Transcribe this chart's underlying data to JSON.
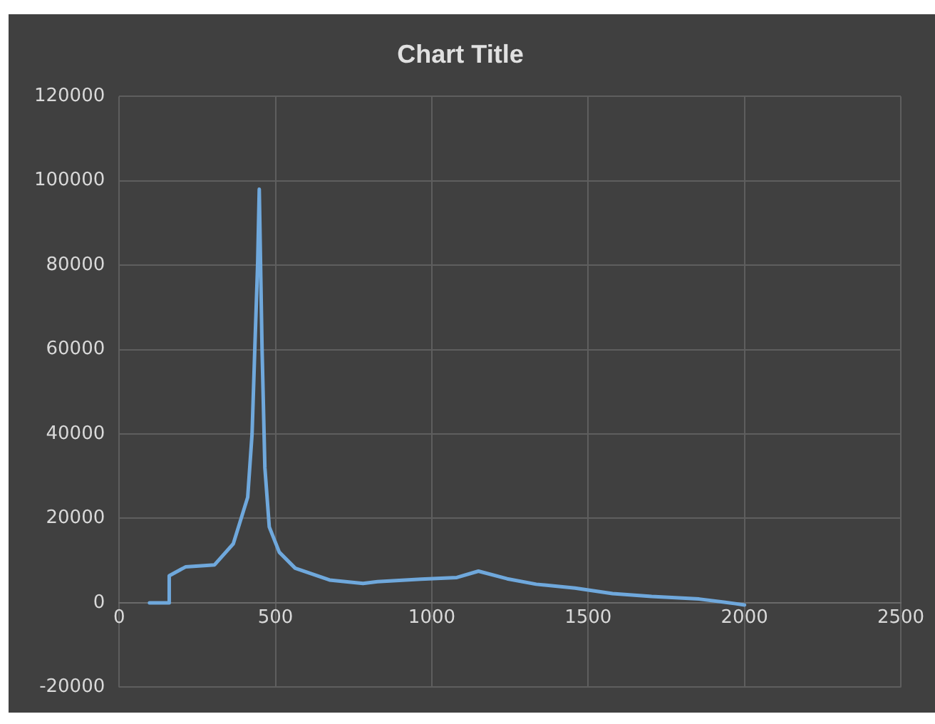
{
  "chart_data": {
    "type": "line",
    "title": "Chart Title",
    "x": [
      97,
      157,
      160,
      212,
      305,
      365,
      411,
      425,
      434,
      443,
      448,
      457,
      466,
      480,
      512,
      563,
      673,
      780,
      826,
      965,
      1080,
      1149,
      1241,
      1334,
      1458,
      1578,
      1703,
      1855,
      1971,
      2000
    ],
    "series": [
      {
        "color": "#6fa8dc",
        "values": [
          0,
          0,
          6400,
          8500,
          9000,
          14000,
          25000,
          40000,
          60700,
          80700,
          98000,
          60000,
          32000,
          18000,
          12000,
          8200,
          5400,
          4600,
          5000,
          5600,
          6000,
          7500,
          5700,
          4400,
          3500,
          2200,
          1500,
          900,
          -200,
          -500
        ]
      }
    ],
    "xlim": [
      0,
      2500
    ],
    "xticks": [
      0,
      500,
      1000,
      1500,
      2000,
      2500
    ],
    "ylim": [
      -20000,
      120000
    ],
    "yticks": [
      -20000,
      0,
      20000,
      40000,
      60000,
      80000,
      100000,
      120000
    ],
    "grid": true,
    "legend": false,
    "marker": "none",
    "line_style": "solid"
  }
}
